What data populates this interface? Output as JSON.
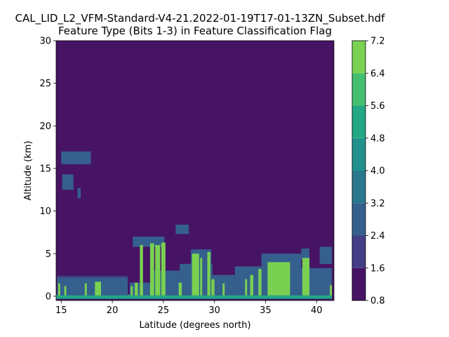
{
  "chart_data": {
    "type": "heatmap",
    "title": "CAL_LID_L2_VFM-Standard-V4-21.2022-01-19T17-01-13ZN_Subset.hdf",
    "subtitle": "Feature Type (Bits 1-3) in Feature Classification Flag",
    "xlabel": "Latitude (degrees north)",
    "ylabel": "Altitude (km)",
    "xlim": [
      14.5,
      41.7
    ],
    "ylim": [
      -0.5,
      30
    ],
    "xticks": [
      15,
      20,
      25,
      30,
      35,
      40
    ],
    "yticks": [
      0,
      5,
      10,
      15,
      20,
      25,
      30
    ],
    "colorbar": {
      "levels": [
        0.8,
        1.6,
        2.4,
        3.2,
        4.0,
        4.8,
        5.6,
        6.4,
        7.2
      ],
      "ticklabels": [
        "0.8",
        "1.6",
        "2.4",
        "3.2",
        "4.0",
        "4.8",
        "5.6",
        "6.4",
        "7.2"
      ],
      "colors": [
        "#471365",
        "#433e85",
        "#35608d",
        "#2a788e",
        "#21918c",
        "#22a884",
        "#44bf70",
        "#7ad151",
        "#d2e21b"
      ]
    },
    "background_value": 1.2,
    "features": [
      {
        "value": 5.2,
        "x": [
          14.5,
          41.5
        ],
        "y": [
          -0.3,
          0.2
        ]
      },
      {
        "value": 2.8,
        "x": [
          14.6,
          21.5
        ],
        "y": [
          0.1,
          2.2
        ]
      },
      {
        "value": 2.0,
        "x": [
          14.6,
          21.5
        ],
        "y": [
          2.2,
          2.4
        ]
      },
      {
        "value": 2.8,
        "x": [
          15.0,
          17.9
        ],
        "y": [
          15.5,
          17.0
        ]
      },
      {
        "value": 2.8,
        "x": [
          15.1,
          16.2
        ],
        "y": [
          12.5,
          14.3
        ]
      },
      {
        "value": 2.8,
        "x": [
          16.6,
          16.9
        ],
        "y": [
          11.5,
          12.7
        ]
      },
      {
        "value": 2.8,
        "x": [
          21.7,
          24.0
        ],
        "y": [
          0.1,
          1.6
        ]
      },
      {
        "value": 2.8,
        "x": [
          22.0,
          25.1
        ],
        "y": [
          5.8,
          7.0
        ]
      },
      {
        "value": 2.8,
        "x": [
          24.0,
          26.6
        ],
        "y": [
          0.1,
          3.0
        ]
      },
      {
        "value": 2.8,
        "x": [
          26.6,
          29.8
        ],
        "y": [
          0.1,
          3.8
        ]
      },
      {
        "value": 2.8,
        "x": [
          26.2,
          27.5
        ],
        "y": [
          7.3,
          8.4
        ]
      },
      {
        "value": 2.8,
        "x": [
          27.7,
          29.7
        ],
        "y": [
          3.8,
          5.5
        ]
      },
      {
        "value": 2.8,
        "x": [
          29.5,
          32.0
        ],
        "y": [
          0.1,
          2.5
        ]
      },
      {
        "value": 2.8,
        "x": [
          32.0,
          34.6
        ],
        "y": [
          0.1,
          3.5
        ]
      },
      {
        "value": 2.8,
        "x": [
          34.6,
          38.5
        ],
        "y": [
          3.3,
          5.0
        ]
      },
      {
        "value": 2.8,
        "x": [
          34.6,
          41.5
        ],
        "y": [
          0.1,
          3.3
        ]
      },
      {
        "value": 2.8,
        "x": [
          38.5,
          39.3
        ],
        "y": [
          4.3,
          5.6
        ]
      },
      {
        "value": 2.8,
        "x": [
          40.3,
          41.5
        ],
        "y": [
          3.8,
          5.8
        ]
      },
      {
        "value": 7.0,
        "x": [
          14.7,
          14.9
        ],
        "y": [
          0.1,
          1.5
        ]
      },
      {
        "value": 7.0,
        "x": [
          15.3,
          15.5
        ],
        "y": [
          0.1,
          1.2
        ]
      },
      {
        "value": 7.0,
        "x": [
          17.3,
          17.5
        ],
        "y": [
          0.1,
          1.5
        ]
      },
      {
        "value": 7.0,
        "x": [
          18.3,
          18.9
        ],
        "y": [
          0.1,
          1.7
        ]
      },
      {
        "value": 7.0,
        "x": [
          21.8,
          22.0
        ],
        "y": [
          0.1,
          1.2
        ]
      },
      {
        "value": 7.0,
        "x": [
          22.2,
          22.5
        ],
        "y": [
          0.1,
          1.6
        ]
      },
      {
        "value": 7.0,
        "x": [
          22.7,
          23.0
        ],
        "y": [
          0.1,
          6.0
        ]
      },
      {
        "value": 7.0,
        "x": [
          23.7,
          24.1
        ],
        "y": [
          0.1,
          6.2
        ]
      },
      {
        "value": 7.0,
        "x": [
          24.2,
          24.7
        ],
        "y": [
          0.1,
          6.0
        ]
      },
      {
        "value": 7.0,
        "x": [
          24.8,
          25.2
        ],
        "y": [
          0.1,
          6.3
        ]
      },
      {
        "value": 7.0,
        "x": [
          26.5,
          26.8
        ],
        "y": [
          0.1,
          1.6
        ]
      },
      {
        "value": 7.0,
        "x": [
          27.8,
          28.5
        ],
        "y": [
          0.1,
          5.0
        ]
      },
      {
        "value": 7.0,
        "x": [
          28.6,
          28.8
        ],
        "y": [
          0.1,
          4.5
        ]
      },
      {
        "value": 7.0,
        "x": [
          29.3,
          29.6
        ],
        "y": [
          0.1,
          5.2
        ]
      },
      {
        "value": 7.0,
        "x": [
          29.7,
          30.0
        ],
        "y": [
          0.1,
          2.0
        ]
      },
      {
        "value": 7.0,
        "x": [
          30.8,
          31.0
        ],
        "y": [
          0.1,
          1.5
        ]
      },
      {
        "value": 7.0,
        "x": [
          33.0,
          33.2
        ],
        "y": [
          0.1,
          2.0
        ]
      },
      {
        "value": 7.0,
        "x": [
          33.5,
          33.8
        ],
        "y": [
          0.1,
          2.5
        ]
      },
      {
        "value": 7.0,
        "x": [
          34.3,
          34.6
        ],
        "y": [
          0.1,
          3.2
        ]
      },
      {
        "value": 7.0,
        "x": [
          35.2,
          37.4
        ],
        "y": [
          0.1,
          4.0
        ]
      },
      {
        "value": 7.0,
        "x": [
          38.6,
          39.3
        ],
        "y": [
          0.1,
          4.5
        ]
      },
      {
        "value": 7.0,
        "x": [
          41.3,
          41.5
        ],
        "y": [
          0.1,
          1.3
        ]
      }
    ]
  }
}
